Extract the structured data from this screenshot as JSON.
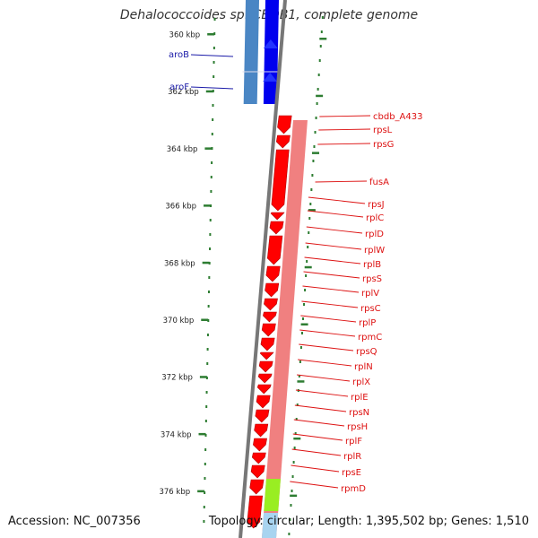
{
  "title": "Dehalococcoides sp. CBDB1, complete genome",
  "accession_text": "Accession: NC_007356",
  "topology_text": "Topology: circular; Length: 1,395,502 bp; Genes: 1,510",
  "colors": {
    "forward_cds": "#0000ee",
    "forward_track": "#4a86c4",
    "reverse_cds": "#ff0000",
    "reverse_track": "#f08080",
    "rna_feature": "#99ee22",
    "backbone": "#777777",
    "tick": "#2e7d32",
    "forward_label": "#1a1aa8",
    "reverse_label": "#dd1111"
  },
  "scale_labels": [
    "360 kbp",
    "362 kbp",
    "364 kbp",
    "366 kbp",
    "368 kbp",
    "370 kbp",
    "372 kbp",
    "374 kbp",
    "376 kbp"
  ],
  "forward_genes": [
    "aroB",
    "aroF"
  ],
  "reverse_genes": [
    "cbdb_A433",
    "rpsL",
    "rpsG",
    "fusA",
    "rpsJ",
    "rplC",
    "rplD",
    "rplW",
    "rplB",
    "rpsS",
    "rplV",
    "rpsC",
    "rplP",
    "rpmC",
    "rpsQ",
    "rplN",
    "rplX",
    "rplE",
    "rpsN",
    "rpsH",
    "rplF",
    "rplR",
    "rpsE",
    "rpmD"
  ]
}
